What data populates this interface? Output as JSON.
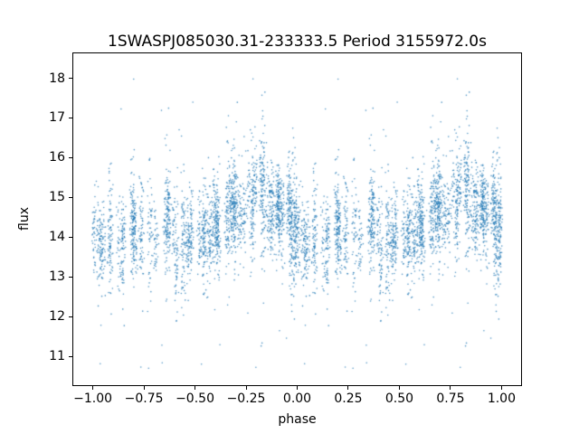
{
  "chart_data": {
    "type": "scatter",
    "title": "1SWASPJ085030.31-233333.5 Period 3155972.0s",
    "xlabel": "phase",
    "ylabel": "flux",
    "xlim": [
      -1.1,
      1.1
    ],
    "ylim": [
      10.25,
      18.65
    ],
    "grid": false,
    "legend": null,
    "marker": {
      "color": "#1f77b4",
      "alpha": 0.75,
      "radius": 0.8
    },
    "xticks": [
      {
        "value": -1.0,
        "label": "−1.00"
      },
      {
        "value": -0.75,
        "label": "−0.75"
      },
      {
        "value": -0.5,
        "label": "−0.50"
      },
      {
        "value": -0.25,
        "label": "−0.25"
      },
      {
        "value": 0.0,
        "label": "0.00"
      },
      {
        "value": 0.25,
        "label": "0.25"
      },
      {
        "value": 0.5,
        "label": "0.50"
      },
      {
        "value": 0.75,
        "label": "0.75"
      },
      {
        "value": 1.0,
        "label": "1.00"
      }
    ],
    "yticks": [
      {
        "value": 11,
        "label": "11"
      },
      {
        "value": 12,
        "label": "12"
      },
      {
        "value": 13,
        "label": "13"
      },
      {
        "value": 14,
        "label": "14"
      },
      {
        "value": 15,
        "label": "15"
      },
      {
        "value": 16,
        "label": "16"
      },
      {
        "value": 17,
        "label": "17"
      },
      {
        "value": 18,
        "label": "18"
      }
    ],
    "description": "Phase-folded light curve: thousands of tiny blue points in vertical night-strips, flux mostly between 12.5 and 16.5 around mean ~14.3, identical data plotted over phase cycles [-1,0) and [0,1); sparse isolated outliers between ~10.6 and ~18.2.",
    "envelope": {
      "mean": 14.35,
      "harmonics": [
        {
          "amp": 0.45,
          "freq": 1,
          "phase_offset": 0.55
        },
        {
          "amp": 0.3,
          "freq": 2,
          "phase_offset": 0.175
        }
      ]
    },
    "scatter_model": {
      "seed": 42,
      "strips_per_cycle": 70,
      "points_per_strip_min": 28,
      "points_per_strip_max": 58,
      "strip_phase_sd": 0.006,
      "strip_offset_sd": 0.28,
      "point_sd": 0.55,
      "wide_strip_prob": 0.15,
      "wide_strip_factor": 1.7,
      "outliers": {
        "count": 26,
        "low": [
          10.6,
          12.3
        ],
        "high": [
          16.7,
          18.2
        ]
      }
    }
  }
}
